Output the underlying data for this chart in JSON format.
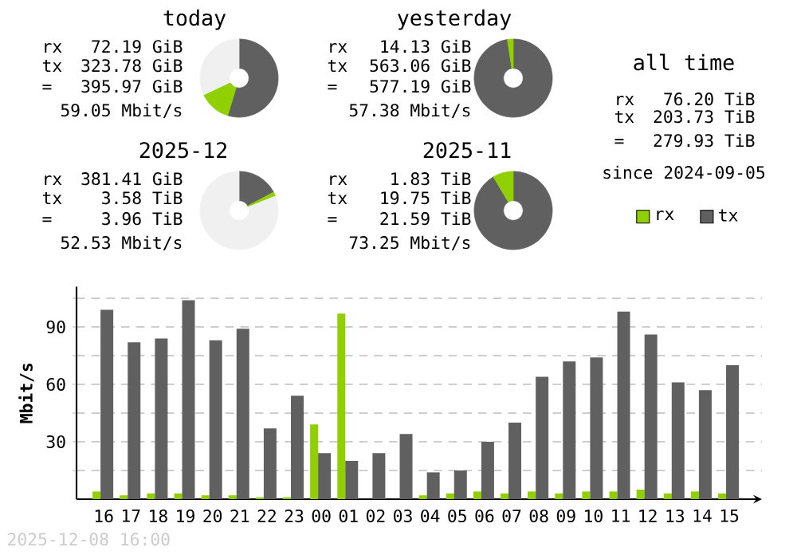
{
  "chart_data": [
    {
      "type": "donut",
      "title": "today",
      "categories": [
        null,
        null,
        null
      ],
      "values": [
        54.7,
        13.3,
        32.0
      ],
      "colors": [
        "#606060",
        "#90d000",
        "#f0f0f0"
      ],
      "annotations": [
        "rx",
        "72.19 GiB",
        "tx",
        "323.78 GiB",
        "=",
        "395.97 GiB",
        "59.05 Mbit/s"
      ]
    },
    {
      "type": "donut",
      "title": "yesterday",
      "categories": [
        null,
        null,
        null
      ],
      "values": [
        97.6,
        2.4,
        0
      ],
      "colors": [
        "#606060",
        "#90d000",
        "#f0f0f0"
      ],
      "annotations": [
        "rx",
        "14.13 GiB",
        "tx",
        "563.06 GiB",
        "=",
        "577.19 GiB",
        "57.38 Mbit/s"
      ]
    },
    {
      "type": "donut",
      "title": "2025-12",
      "categories": [
        null,
        null,
        null
      ],
      "values": [
        17.2,
        1.8,
        81.0
      ],
      "colors": [
        "#606060",
        "#90d000",
        "#f0f0f0"
      ],
      "annotations": [
        "rx",
        "381.41 GiB",
        "tx",
        "3.58 TiB",
        "=",
        "3.96 TiB",
        "52.53 Mbit/s"
      ]
    },
    {
      "type": "donut",
      "title": "2025-11",
      "categories": [
        null,
        null,
        null
      ],
      "values": [
        91.5,
        8.5,
        0
      ],
      "colors": [
        "#606060",
        "#90d000",
        "#f0f0f0"
      ],
      "annotations": [
        "rx",
        "1.83 TiB",
        "tx",
        "19.75 TiB",
        "=",
        "21.59 TiB",
        "73.25 Mbit/s"
      ]
    },
    {
      "type": "other",
      "title": "all time",
      "annotations": [
        "rx",
        "76.20 TiB",
        "tx",
        "203.73 TiB",
        "=",
        "279.93 TiB",
        "since 2024-09-05"
      ]
    },
    {
      "type": "bar",
      "ylabel": "Mbit/s",
      "categories": [
        "16",
        "17",
        "18",
        "19",
        "20",
        "21",
        "22",
        "23",
        "00",
        "01",
        "02",
        "03",
        "04",
        "05",
        "06",
        "07",
        "08",
        "09",
        "10",
        "11",
        "12",
        "13",
        "14",
        "15"
      ],
      "series": [
        {
          "name": "rx",
          "color": "#90d000",
          "values": [
            4,
            2,
            3,
            3,
            2,
            2,
            1,
            1,
            39,
            97,
            0,
            0,
            2,
            3,
            4,
            3,
            4,
            3,
            4,
            4,
            5,
            3,
            4,
            3
          ]
        },
        {
          "name": "tx",
          "color": "#606060",
          "values": [
            99,
            82,
            84,
            104,
            83,
            89,
            37,
            54,
            24,
            20,
            24,
            34,
            14,
            15,
            30,
            40,
            64,
            72,
            74,
            98,
            86,
            61,
            57,
            70
          ]
        }
      ],
      "ylim": [
        0,
        111
      ],
      "yticks": [
        {
          "value": 15,
          "label": null
        },
        30,
        {
          "value": 45,
          "label": null
        },
        60,
        {
          "value": 75,
          "label": null
        },
        90,
        {
          "value": 105,
          "label": null
        }
      ],
      "grid": "y",
      "legend": "top right",
      "annotations": [
        "2025-12-08 16:00"
      ]
    }
  ]
}
